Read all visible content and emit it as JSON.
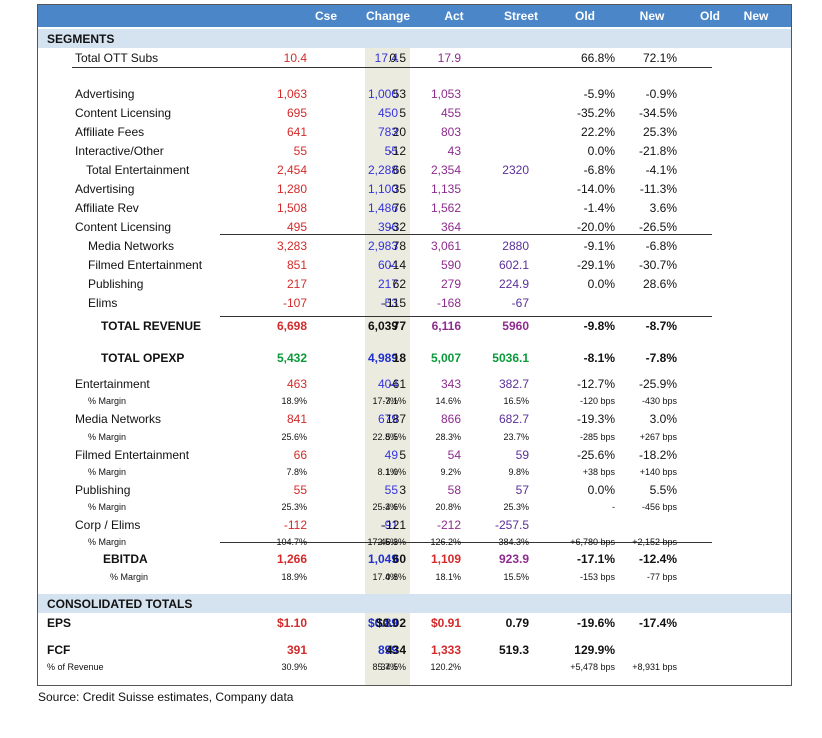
{
  "header": {
    "columns": [
      "Cse",
      "Change",
      "Act",
      "Street",
      "Old",
      "New",
      "Old",
      "New"
    ]
  },
  "segments": {
    "title": "SEGMENTS",
    "rows": [
      {
        "label": "Total OTT Subs",
        "c1": "10.4",
        "cse": "17.4",
        "chg": "0.5",
        "act": "17.9",
        "str": "",
        "old": "66.8%",
        "new": "72.1%"
      },
      {
        "label": "Advertising",
        "c1": "1,063",
        "cse": "1,000",
        "chg": "53",
        "act": "1,053",
        "str": "",
        "old": "-5.9%",
        "new": "-0.9%"
      },
      {
        "label": "Content Licensing",
        "c1": "695",
        "cse": "450",
        "chg": "5",
        "act": "455",
        "str": "",
        "old": "-35.2%",
        "new": "-34.5%"
      },
      {
        "label": "Affiliate Fees",
        "c1": "641",
        "cse": "783",
        "chg": "20",
        "act": "803",
        "str": "",
        "old": "22.2%",
        "new": "25.3%"
      },
      {
        "label": "Interactive/Other",
        "c1": "55",
        "cse": "55",
        "chg": "-12",
        "act": "43",
        "str": "",
        "old": "0.0%",
        "new": "-21.8%"
      },
      {
        "label": "Total Entertainment",
        "c1": "2,454",
        "cse": "2,288",
        "chg": "66",
        "act": "2,354",
        "str": "2320",
        "old": "-6.8%",
        "new": "-4.1%"
      },
      {
        "label": "Advertising",
        "c1": "1,280",
        "cse": "1,100",
        "chg": "35",
        "act": "1,135",
        "str": "",
        "old": "-14.0%",
        "new": "-11.3%"
      },
      {
        "label": "Affiliate Rev",
        "c1": "1,508",
        "cse": "1,486",
        "chg": "76",
        "act": "1,562",
        "str": "",
        "old": "-1.4%",
        "new": "3.6%"
      },
      {
        "label": "Content Licensing",
        "c1": "495",
        "cse": "396",
        "chg": "-32",
        "act": "364",
        "str": "",
        "old": "-20.0%",
        "new": "-26.5%"
      },
      {
        "label": "Media Networks",
        "c1": "3,283",
        "cse": "2,983",
        "chg": "78",
        "act": "3,061",
        "str": "2880",
        "old": "-9.1%",
        "new": "-6.8%"
      },
      {
        "label": "Filmed Entertainment",
        "c1": "851",
        "cse": "604",
        "chg": "-14",
        "act": "590",
        "str": "602.1",
        "old": "-29.1%",
        "new": "-30.7%"
      },
      {
        "label": "Publishing",
        "c1": "217",
        "cse": "217",
        "chg": "62",
        "act": "279",
        "str": "224.9",
        "old": "0.0%",
        "new": "28.6%"
      },
      {
        "label": "Elims",
        "c1": "-107",
        "cse": "-53",
        "chg": "-115",
        "act": "-168",
        "str": "-67",
        "old": "",
        "new": ""
      },
      {
        "label": "TOTAL REVENUE",
        "c1": "6,698",
        "cse": "6,039",
        "chg": "77",
        "act": "6,116",
        "str": "5960",
        "old": "-9.8%",
        "new": "-8.7%"
      },
      {
        "label": "TOTAL OPEXP",
        "c1": "5,432",
        "cse": "4,989",
        "chg": "18",
        "act": "5,007",
        "str": "5036.1",
        "old": "-8.1%",
        "new": "-7.8%"
      },
      {
        "label": "Entertainment",
        "c1": "463",
        "cse": "404",
        "chg": "-61",
        "act": "343",
        "str": "382.7",
        "old": "-12.7%",
        "new": "-25.9%"
      },
      {
        "label": "% Margin",
        "c1": "18.9%",
        "cse": "17.7%",
        "chg": "-3.1%",
        "act": "14.6%",
        "str": "16.5%",
        "old": "-120 bps",
        "new": "-430 bps"
      },
      {
        "label": "Media Networks",
        "c1": "841",
        "cse": "679",
        "chg": "187",
        "act": "866",
        "str": "682.7",
        "old": "-19.3%",
        "new": "3.0%"
      },
      {
        "label": "% Margin",
        "c1": "25.6%",
        "cse": "22.8%",
        "chg": "5.5%",
        "act": "28.3%",
        "str": "23.7%",
        "old": "-285 bps",
        "new": "+267 bps"
      },
      {
        "label": "Filmed Entertainment",
        "c1": "66",
        "cse": "49",
        "chg": "5",
        "act": "54",
        "str": "59",
        "old": "-25.6%",
        "new": "-18.2%"
      },
      {
        "label": "% Margin",
        "c1": "7.8%",
        "cse": "8.1%",
        "chg": "1.0%",
        "act": "9.2%",
        "str": "9.8%",
        "old": "+38 bps",
        "new": "+140 bps"
      },
      {
        "label": "Publishing",
        "c1": "55",
        "cse": "55",
        "chg": "3",
        "act": "58",
        "str": "57",
        "old": "0.0%",
        "new": "5.5%"
      },
      {
        "label": "% Margin",
        "c1": "25.3%",
        "cse": "25.3%",
        "chg": "-4.6%",
        "act": "20.8%",
        "str": "25.3%",
        "old": "-",
        "new": "-456 bps"
      },
      {
        "label": "Corp / Elims",
        "c1": "-112",
        "cse": "-91",
        "chg": "-121",
        "act": "-212",
        "str": "-257.5",
        "old": "",
        "new": ""
      },
      {
        "label": "% Margin",
        "c1": "104.7%",
        "cse": "172.5%",
        "chg": "-46.3%",
        "act": "126.2%",
        "str": "384.3%",
        "old": "+6,780 bps",
        "new": "+2,152 bps"
      },
      {
        "label": "EBITDA",
        "c1": "1,266",
        "cse": "1,049",
        "chg": "60",
        "act": "1,109",
        "str": "923.9",
        "old": "-17.1%",
        "new": "-12.4%"
      },
      {
        "label": "% Margin",
        "c1": "18.9%",
        "cse": "17.4%",
        "chg": "0.8%",
        "act": "18.1%",
        "str": "15.5%",
        "old": "-153 bps",
        "new": "-77 bps"
      }
    ]
  },
  "consolidated": {
    "title": "CONSOLIDATED TOTALS",
    "rows": [
      {
        "label": "EPS",
        "c1": "$1.10",
        "cse": "$0.89",
        "chg": "$0.02",
        "act": "$0.91",
        "str": "0.79",
        "old": "-19.6%",
        "new": "-17.4%"
      },
      {
        "label": "FCF",
        "c1": "391",
        "cse": "899",
        "chg": "434",
        "act": "1,333",
        "str": "519.3",
        "old": "129.9%",
        "new": ""
      },
      {
        "label": "% of Revenue",
        "c1": "30.9%",
        "cse": "85.7%",
        "chg": "34.5%",
        "act": "120.2%",
        "str": "",
        "old": "+5,478 bps",
        "new": "+8,931 bps"
      }
    ]
  },
  "source": "Source: Credit Suisse estimates, Company data"
}
